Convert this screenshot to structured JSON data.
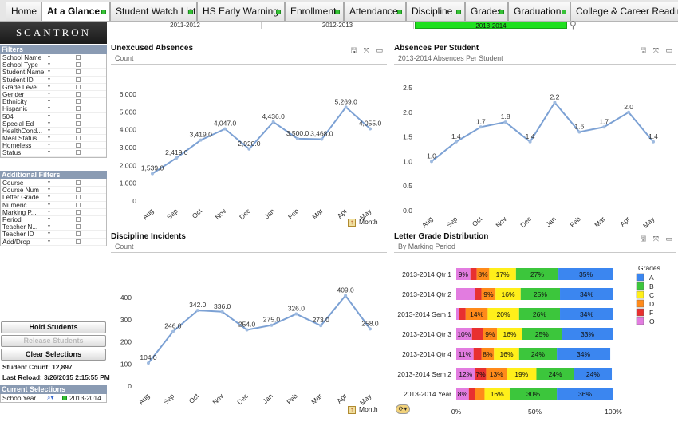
{
  "tabs": [
    {
      "label": "Home",
      "active": false,
      "dot": false
    },
    {
      "label": "At a Glance",
      "active": true,
      "dot": true
    },
    {
      "label": "Student Watch List",
      "active": false,
      "dot": true
    },
    {
      "label": "HS Early Warning",
      "active": false,
      "dot": true
    },
    {
      "label": "Enrollment",
      "active": false,
      "dot": true
    },
    {
      "label": "Attendance",
      "active": false,
      "dot": true
    },
    {
      "label": "Discipline",
      "active": false,
      "dot": true
    },
    {
      "label": "Grades",
      "active": false,
      "dot": true
    },
    {
      "label": "Graduation",
      "active": false,
      "dot": true
    },
    {
      "label": "College & Career Readine",
      "active": false,
      "dot": false
    }
  ],
  "logo": "SCANTRON",
  "years": [
    {
      "label": "2011-2012",
      "selected": false
    },
    {
      "label": "2012-2013",
      "selected": false
    },
    {
      "label": "2013-2014",
      "selected": true
    }
  ],
  "filters": {
    "title": "Filters",
    "items": [
      "School Name",
      "School Type",
      "Student Name",
      "Student ID",
      "Grade Level",
      "Gender",
      "Ethnicity",
      "Hispanic",
      "504",
      "Special Ed",
      "HealthCond...",
      "Meal Status",
      "Homeless",
      "Status"
    ]
  },
  "additional_filters": {
    "title": "Additional Filters",
    "items": [
      "Course",
      "Course Num",
      "Letter Grade",
      "Numeric",
      "Marking P...",
      "Period",
      "Teacher N...",
      "Teacher ID",
      "Add/Drop"
    ]
  },
  "buttons": {
    "hold": "Hold Students",
    "release": "Release Students",
    "clear": "Clear Selections"
  },
  "student_count": "Student Count:  12,897",
  "last_reload": "Last Reload: 3/26/2015 2:15:55 PM",
  "current_selections": {
    "title": "Current Selections",
    "field": "SchoolYear",
    "value": "2013-2014"
  },
  "chart_tools": "🖫 ⤧ ▭",
  "month_label": "Month",
  "chart_data": [
    {
      "type": "line",
      "title": "Unexcused Absences",
      "subtitle": "Count",
      "categories": [
        "Aug",
        "Sep",
        "Oct",
        "Nov",
        "Dec",
        "Jan",
        "Feb",
        "Mar",
        "Apr",
        "May"
      ],
      "values": [
        1539.0,
        2419.0,
        3419.0,
        4047.0,
        2920.0,
        4436.0,
        3500.0,
        3468.0,
        5269.0,
        4055.0
      ],
      "labels": [
        "1,539.0",
        "2,419.0",
        "3,419.0",
        "4,047.0",
        "2,920.0",
        "4,436.0",
        "3,500.0",
        "3,468.0",
        "5,269.0",
        "4,055.0"
      ],
      "yticks": [
        "0",
        "1,000",
        "2,000",
        "3,000",
        "4,000",
        "5,000",
        "6,000"
      ],
      "ylim": [
        0,
        6000
      ]
    },
    {
      "type": "line",
      "title": "Absences Per Student",
      "subtitle": "2013-2014 Absences Per Student",
      "categories": [
        "Aug",
        "Sep",
        "Oct",
        "Nov",
        "Dec",
        "Jan",
        "Feb",
        "Mar",
        "Apr",
        "May"
      ],
      "values": [
        1.0,
        1.4,
        1.7,
        1.8,
        1.4,
        2.2,
        1.6,
        1.7,
        2.0,
        1.4
      ],
      "labels": [
        "1.0",
        "1.4",
        "1.7",
        "1.8",
        "1.4",
        "2.2",
        "1.6",
        "1.7",
        "2.0",
        "1.4"
      ],
      "yticks": [
        "0.0",
        "0.5",
        "1.0",
        "1.5",
        "2.0",
        "2.5"
      ],
      "ylim": [
        0,
        2.5
      ]
    },
    {
      "type": "line",
      "title": "Discipline Incidents",
      "subtitle": "Count",
      "categories": [
        "Aug",
        "Sep",
        "Oct",
        "Nov",
        "Dec",
        "Jan",
        "Feb",
        "Mar",
        "Apr",
        "May"
      ],
      "values": [
        104.0,
        246.0,
        342.0,
        336.0,
        254.0,
        275.0,
        326.0,
        273.0,
        409.0,
        258.0
      ],
      "labels": [
        "104.0",
        "246.0",
        "342.0",
        "336.0",
        "254.0",
        "275.0",
        "326.0",
        "273.0",
        "409.0",
        "258.0"
      ],
      "yticks": [
        "0",
        "100",
        "200",
        "300",
        "400"
      ],
      "ylim": [
        0,
        400
      ]
    },
    {
      "type": "bar",
      "stacked": true,
      "orientation": "horizontal",
      "title": "Letter Grade Distribution",
      "subtitle": "By Marking Period",
      "categories": [
        "2013-2014 Qtr 1",
        "2013-2014 Qtr 2",
        "2013-2014 Sem 1",
        "2013-2014 Qtr 3",
        "2013-2014 Qtr 4",
        "2013-2014 Sem 2",
        "2013-2014 Year"
      ],
      "legend_title": "Grades",
      "legend_placement": "right",
      "xticks": [
        "0%",
        "50%",
        "100%"
      ],
      "series": [
        {
          "name": "A",
          "color": "#3b86f0",
          "values": [
            35,
            34,
            34,
            33,
            34,
            24,
            36
          ],
          "labels": [
            "35%",
            "34%",
            "34%",
            "33%",
            "34%",
            "24%",
            "36%"
          ]
        },
        {
          "name": "B",
          "color": "#3cc63c",
          "values": [
            27,
            25,
            26,
            25,
            24,
            24,
            30
          ],
          "labels": [
            "27%",
            "25%",
            "26%",
            "25%",
            "24%",
            "24%",
            "30%"
          ]
        },
        {
          "name": "C",
          "color": "#ffef1a",
          "values": [
            17,
            16,
            20,
            16,
            16,
            19,
            16
          ],
          "labels": [
            "17%",
            "16%",
            "20%",
            "16%",
            "16%",
            "19%",
            "16%"
          ]
        },
        {
          "name": "D",
          "color": "#ff8a1a",
          "values": [
            8,
            9,
            14,
            9,
            8,
            13,
            6
          ],
          "labels": [
            "8%",
            "9%",
            "14%",
            "9%",
            "8%",
            "13%",
            ""
          ]
        },
        {
          "name": "F",
          "color": "#e83030",
          "values": [
            4,
            4,
            4,
            7,
            5,
            7,
            4
          ],
          "labels": [
            "",
            "",
            "",
            "",
            "",
            "7%",
            ""
          ]
        },
        {
          "name": "O",
          "color": "#e27ce0",
          "values": [
            9,
            12,
            2,
            10,
            11,
            12,
            8
          ],
          "labels": [
            "9%",
            "",
            "",
            "10%",
            "11%",
            "12%",
            "8%"
          ]
        }
      ]
    }
  ]
}
